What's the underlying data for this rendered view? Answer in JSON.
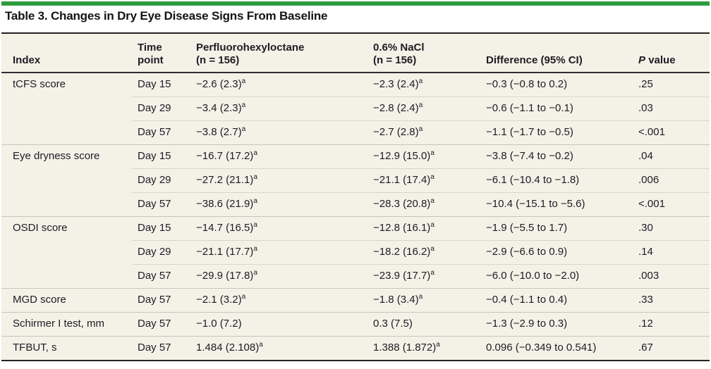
{
  "colors": {
    "accent_bar_green": "#2e9b3e",
    "table_background": "#f4f1e7",
    "rule_dark": "#232323",
    "row_separator_light": "#d8d5cb",
    "text": "#1c1c24"
  },
  "title": "Table 3. Changes in Dry Eye Disease Signs From Baseline",
  "table": {
    "headers": {
      "index": "Index",
      "time": "Time\npoint",
      "drug": "Perfluorohexyloctane\n(n = 156)",
      "nacl": "0.6% NaCl\n(n = 156)",
      "diff": "Difference (95% CI)",
      "p_symbol": "P",
      "p_rest": "value"
    },
    "footnote_marker": "a",
    "rows": [
      {
        "index": "tCFS score",
        "time": "Day 15",
        "drug": "−2.6 (2.3)",
        "drug_sup": "a",
        "nacl": "−2.3 (2.4)",
        "nacl_sup": "a",
        "diff": "−0.3 (−0.8 to 0.2)",
        "p": ".25",
        "group_start": true
      },
      {
        "index": "",
        "time": "Day 29",
        "drug": "−3.4 (2.3)",
        "drug_sup": "a",
        "nacl": "−2.8 (2.4)",
        "nacl_sup": "a",
        "diff": "−0.6 (−1.1 to −0.1)",
        "p": ".03",
        "group_start": false
      },
      {
        "index": "",
        "time": "Day 57",
        "drug": "−3.8 (2.7)",
        "drug_sup": "a",
        "nacl": "−2.7 (2.8)",
        "nacl_sup": "a",
        "diff": "−1.1 (−1.7 to −0.5)",
        "p": "<.001",
        "group_start": false
      },
      {
        "index": "Eye dryness score",
        "time": "Day 15",
        "drug": "−16.7 (17.2)",
        "drug_sup": "a",
        "nacl": "−12.9 (15.0)",
        "nacl_sup": "a",
        "diff": "−3.8 (−7.4 to −0.2)",
        "p": ".04",
        "group_start": true
      },
      {
        "index": "",
        "time": "Day 29",
        "drug": "−27.2 (21.1)",
        "drug_sup": "a",
        "nacl": "−21.1 (17.4)",
        "nacl_sup": "a",
        "diff": "−6.1 (−10.4 to −1.8)",
        "p": ".006",
        "group_start": false
      },
      {
        "index": "",
        "time": "Day 57",
        "drug": "−38.6 (21.9)",
        "drug_sup": "a",
        "nacl": "−28.3 (20.8)",
        "nacl_sup": "a",
        "diff": "−10.4 (−15.1 to −5.6)",
        "p": "<.001",
        "group_start": false
      },
      {
        "index": "OSDI score",
        "time": "Day 15",
        "drug": "−14.7 (16.5)",
        "drug_sup": "a",
        "nacl": "−12.8 (16.1)",
        "nacl_sup": "a",
        "diff": "−1.9 (−5.5 to 1.7)",
        "p": ".30",
        "group_start": true
      },
      {
        "index": "",
        "time": "Day 29",
        "drug": "−21.1 (17.7)",
        "drug_sup": "a",
        "nacl": "−18.2 (16.2)",
        "nacl_sup": "a",
        "diff": "−2.9 (−6.6 to 0.9)",
        "p": ".14",
        "group_start": false
      },
      {
        "index": "",
        "time": "Day 57",
        "drug": "−29.9 (17.8)",
        "drug_sup": "a",
        "nacl": "−23.9 (17.7)",
        "nacl_sup": "a",
        "diff": "−6.0 (−10.0 to −2.0)",
        "p": ".003",
        "group_start": false
      },
      {
        "index": "MGD score",
        "time": "Day 57",
        "drug": "−2.1 (3.2)",
        "drug_sup": "a",
        "nacl": "−1.8 (3.4)",
        "nacl_sup": "a",
        "diff": "−0.4 (−1.1 to 0.4)",
        "p": ".33",
        "group_start": true
      },
      {
        "index": "Schirmer I test, mm",
        "time": "Day 57",
        "drug": "−1.0 (7.2)",
        "drug_sup": "",
        "nacl": "0.3 (7.5)",
        "nacl_sup": "",
        "diff": "−1.3 (−2.9 to 0.3)",
        "p": ".12",
        "group_start": true
      },
      {
        "index": "TFBUT, s",
        "time": "Day 57",
        "drug": "1.484 (2.108)",
        "drug_sup": "a",
        "nacl": "1.388 (1.872)",
        "nacl_sup": "a",
        "diff": "0.096 (−0.349 to 0.541)",
        "p": ".67",
        "group_start": true
      }
    ]
  }
}
